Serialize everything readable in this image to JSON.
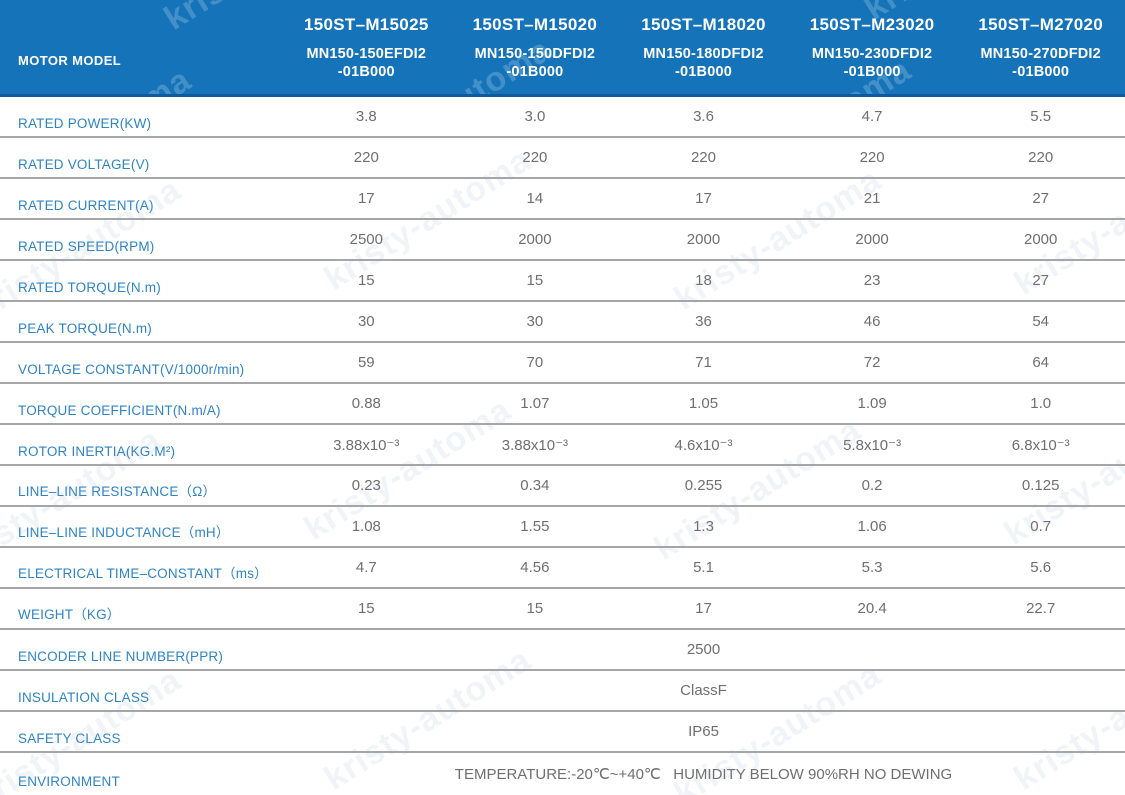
{
  "watermark": {
    "text": "kristy-automa"
  },
  "header": {
    "row_label": "MOTOR MODEL",
    "columns": [
      {
        "model": "150ST–M15025",
        "part_line1": "MN150-150EFDI2",
        "part_line2": "-01B000"
      },
      {
        "model": "150ST–M15020",
        "part_line1": "MN150-150DFDI2",
        "part_line2": "-01B000"
      },
      {
        "model": "150ST–M18020",
        "part_line1": "MN150-180DFDI2",
        "part_line2": "-01B000"
      },
      {
        "model": "150ST–M23020",
        "part_line1": "MN150-230DFDI2",
        "part_line2": "-01B000"
      },
      {
        "model": "150ST–M27020",
        "part_line1": "MN150-270DFDI2",
        "part_line2": "-01B000"
      }
    ]
  },
  "rows": [
    {
      "label": "RATED POWER(KW)",
      "values": [
        "3.8",
        "3.0",
        "3.6",
        "4.7",
        "5.5"
      ]
    },
    {
      "label": "RATED VOLTAGE(V)",
      "values": [
        "220",
        "220",
        "220",
        "220",
        "220"
      ]
    },
    {
      "label": "RATED CURRENT(A)",
      "values": [
        "17",
        "14",
        "17",
        "21",
        "27"
      ]
    },
    {
      "label": "RATED SPEED(RPM)",
      "values": [
        "2500",
        "2000",
        "2000",
        "2000",
        "2000"
      ]
    },
    {
      "label": "RATED TORQUE(N.m)",
      "values": [
        "15",
        "15",
        "18",
        "23",
        "27"
      ]
    },
    {
      "label": "PEAK TORQUE(N.m)",
      "values": [
        "30",
        "30",
        "36",
        "46",
        "54"
      ]
    },
    {
      "label": "VOLTAGE CONSTANT(V/1000r/min)",
      "values": [
        "59",
        "70",
        "71",
        "72",
        "64"
      ]
    },
    {
      "label": "TORQUE COEFFICIENT(N.m/A)",
      "values": [
        "0.88",
        "1.07",
        "1.05",
        "1.09",
        "1.0"
      ]
    },
    {
      "label": "ROTOR INERTIA(KG.M²)",
      "values": [
        "3.88x10⁻³",
        "3.88x10⁻³",
        "4.6x10⁻³",
        "5.8x10⁻³",
        "6.8x10⁻³"
      ]
    },
    {
      "label": "LINE–LINE RESISTANCE（Ω）",
      "values": [
        "0.23",
        "0.34",
        "0.255",
        "0.2",
        "0.125"
      ]
    },
    {
      "label": "LINE–LINE INDUCTANCE（mH）",
      "values": [
        "1.08",
        "1.55",
        "1.3",
        "1.06",
        "0.7"
      ]
    },
    {
      "label": "ELECTRICAL TIME–CONSTANT（ms）",
      "values": [
        "4.7",
        "4.56",
        "5.1",
        "5.3",
        "5.6"
      ]
    },
    {
      "label": "WEIGHT（KG）",
      "values": [
        "15",
        "15",
        "17",
        "20.4",
        "22.7"
      ]
    }
  ],
  "span_rows": [
    {
      "label": "ENCODER LINE NUMBER(PPR)",
      "value": "2500"
    },
    {
      "label": "INSULATION CLASS",
      "value": "ClassF"
    },
    {
      "label": "SAFETY CLASS",
      "value": "IP65"
    },
    {
      "label": "ENVIRONMENT",
      "value": "TEMPERATURE:-20℃~+40℃   HUMIDITY BELOW 90%RH NO DEWING"
    }
  ],
  "colors": {
    "header_bg": "#1573B9",
    "header_bottom_strip": "#0D5A9E",
    "label_text": "#2E84C6",
    "value_text": "#6F6F6F",
    "divider": "#A6A6A6"
  }
}
